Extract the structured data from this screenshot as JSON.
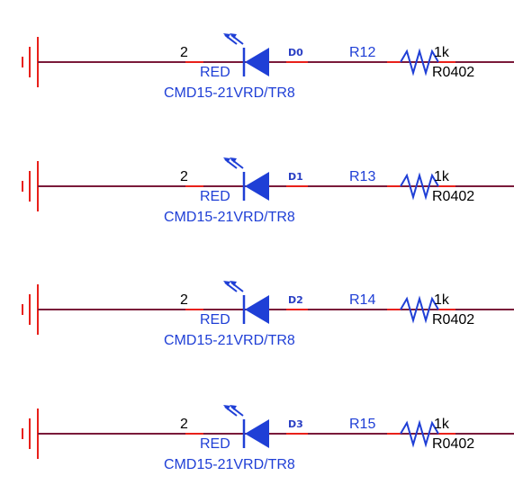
{
  "colors": {
    "wire": "#7a1a3a",
    "pin": "#e8201a",
    "ground": "#e8201a",
    "component": "#1f3fd6",
    "text_black": "#000000",
    "text_blue": "#1f3fd6",
    "net_label": "#2a3fc4"
  },
  "rows": [
    {
      "pin_number": "2",
      "led_color": "RED",
      "led_part": "CMD15-21VRD/TR8",
      "net_label": "D0",
      "resistor_ref": "R12",
      "resistor_value": "1k",
      "resistor_package": "R0402"
    },
    {
      "pin_number": "2",
      "led_color": "RED",
      "led_part": "CMD15-21VRD/TR8",
      "net_label": "D1",
      "resistor_ref": "R13",
      "resistor_value": "1k",
      "resistor_package": "R0402"
    },
    {
      "pin_number": "2",
      "led_color": "RED",
      "led_part": "CMD15-21VRD/TR8",
      "net_label": "D2",
      "resistor_ref": "R14",
      "resistor_value": "1k",
      "resistor_package": "R0402"
    },
    {
      "pin_number": "2",
      "led_color": "RED",
      "led_part": "CMD15-21VRD/TR8",
      "net_label": "D3",
      "resistor_ref": "R15",
      "resistor_value": "1k",
      "resistor_package": "R0402"
    }
  ]
}
